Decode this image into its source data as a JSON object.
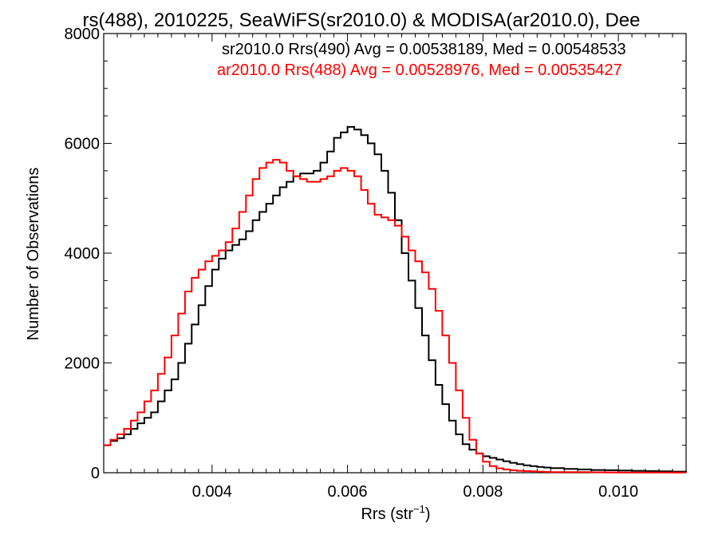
{
  "chart_data": {
    "type": "line",
    "title": "rs(488), 2010225, SeaWiFS(sr2010.0) & MODISA(ar2010.0), Dee",
    "xlabel": "Rrs (str",
    "xlabel_sup": "−1",
    "xlabel_close": ")",
    "ylabel": "Number of Observations",
    "xlim": [
      0.0024,
      0.011
    ],
    "ylim": [
      0,
      8000
    ],
    "xticks": [
      0.004,
      0.006,
      0.008,
      0.01
    ],
    "xtick_labels": [
      "0.004",
      "0.006",
      "0.008",
      "0.010"
    ],
    "yticks": [
      0,
      2000,
      4000,
      6000,
      8000
    ],
    "ytick_labels": [
      "0",
      "2000",
      "4000",
      "6000",
      "8000"
    ],
    "step": "histogram",
    "series": [
      {
        "name": "sr2010.0 Rrs(490)",
        "label": "sr2010.0 Rrs(490) Avg = 0.00538189, Med = 0.00548533",
        "color": "#000000",
        "x": [
          0.0024,
          0.0025,
          0.0026,
          0.0027,
          0.0028,
          0.0029,
          0.003,
          0.0031,
          0.0032,
          0.0033,
          0.0034,
          0.0035,
          0.0036,
          0.0037,
          0.0038,
          0.0039,
          0.004,
          0.0041,
          0.0042,
          0.0043,
          0.0044,
          0.0045,
          0.0046,
          0.0047,
          0.0048,
          0.0049,
          0.005,
          0.0051,
          0.0052,
          0.0053,
          0.0054,
          0.0055,
          0.0056,
          0.0057,
          0.0058,
          0.0059,
          0.006,
          0.0061,
          0.0062,
          0.0063,
          0.0064,
          0.0065,
          0.0066,
          0.0067,
          0.0068,
          0.0069,
          0.007,
          0.0071,
          0.0072,
          0.0073,
          0.0074,
          0.0075,
          0.0076,
          0.0077,
          0.0078,
          0.0079,
          0.008,
          0.0081,
          0.0082,
          0.0083,
          0.0084,
          0.0085,
          0.0086,
          0.0087,
          0.0088,
          0.0089,
          0.009,
          0.0092,
          0.0094,
          0.0096,
          0.0098,
          0.01,
          0.0102,
          0.0104,
          0.0106,
          0.0108,
          0.011
        ],
        "values": [
          500,
          580,
          630,
          700,
          800,
          900,
          1000,
          1100,
          1300,
          1500,
          1700,
          2000,
          2350,
          2700,
          3050,
          3400,
          3700,
          3900,
          4050,
          4150,
          4250,
          4400,
          4600,
          4750,
          4900,
          5050,
          5200,
          5300,
          5400,
          5450,
          5450,
          5500,
          5650,
          5850,
          6100,
          6200,
          6300,
          6250,
          6150,
          6000,
          5800,
          5500,
          5100,
          4600,
          4000,
          3500,
          3000,
          2500,
          2050,
          1600,
          1250,
          950,
          700,
          520,
          420,
          350,
          300,
          270,
          240,
          210,
          180,
          155,
          135,
          120,
          105,
          95,
          85,
          70,
          60,
          50,
          45,
          40,
          35,
          30,
          25,
          20,
          15
        ]
      },
      {
        "name": "ar2010.0 Rrs(488)",
        "label": "ar2010.0 Rrs(488) Avg = 0.00528976, Med = 0.00535427",
        "color": "#ff0000",
        "x": [
          0.0024,
          0.0025,
          0.0026,
          0.0027,
          0.0028,
          0.0029,
          0.003,
          0.0031,
          0.0032,
          0.0033,
          0.0034,
          0.0035,
          0.0036,
          0.0037,
          0.0038,
          0.0039,
          0.004,
          0.0041,
          0.0042,
          0.0043,
          0.0044,
          0.0045,
          0.0046,
          0.0047,
          0.0048,
          0.0049,
          0.005,
          0.0051,
          0.0052,
          0.0053,
          0.0054,
          0.0055,
          0.0056,
          0.0057,
          0.0058,
          0.0059,
          0.006,
          0.0061,
          0.0062,
          0.0063,
          0.0064,
          0.0065,
          0.0066,
          0.0067,
          0.0068,
          0.0069,
          0.007,
          0.0071,
          0.0072,
          0.0073,
          0.0074,
          0.0075,
          0.0076,
          0.0077,
          0.0078,
          0.0079,
          0.008,
          0.0081,
          0.0082,
          0.0083,
          0.0084,
          0.0085,
          0.0086,
          0.0087,
          0.0088,
          0.0089,
          0.009,
          0.0092,
          0.0094,
          0.0096,
          0.0098,
          0.01,
          0.0102,
          0.0104,
          0.0106,
          0.0108,
          0.011
        ],
        "values": [
          500,
          600,
          700,
          800,
          950,
          1100,
          1300,
          1500,
          1800,
          2100,
          2500,
          2900,
          3300,
          3550,
          3700,
          3850,
          3950,
          4050,
          4200,
          4450,
          4750,
          5050,
          5350,
          5550,
          5650,
          5700,
          5650,
          5500,
          5400,
          5350,
          5300,
          5300,
          5350,
          5400,
          5500,
          5550,
          5500,
          5400,
          5150,
          4900,
          4700,
          4650,
          4600,
          4500,
          4300,
          4050,
          3850,
          3650,
          3350,
          2950,
          2500,
          2000,
          1500,
          1000,
          600,
          350,
          200,
          120,
          80,
          60,
          45,
          35,
          30,
          25,
          20,
          15,
          12,
          10,
          10,
          8,
          6,
          5,
          5,
          5,
          5,
          5,
          5
        ]
      }
    ],
    "grid": false,
    "legend": "top-right"
  }
}
